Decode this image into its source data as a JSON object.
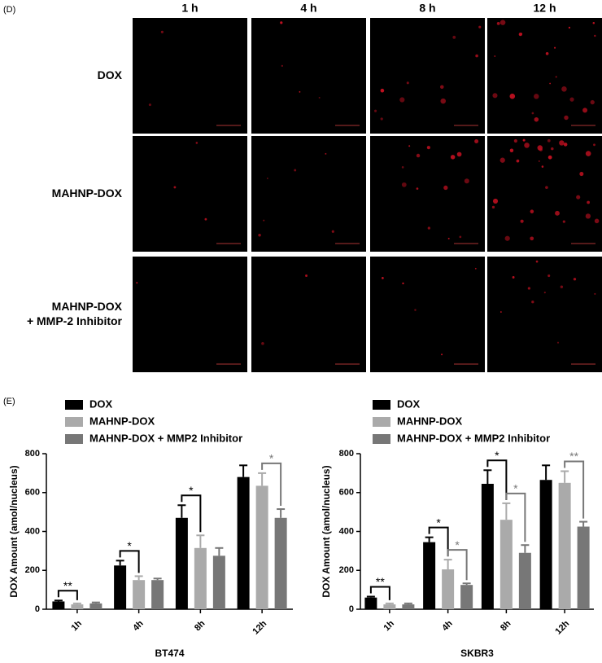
{
  "panel_d": {
    "label": "(D)",
    "columns": [
      "1 h",
      "4 h",
      "8 h",
      "12 h"
    ],
    "rows": [
      "DOX",
      "MAHNP-DOX",
      "MAHNP-DOX\n+ MMP-2 Inhibitor"
    ]
  },
  "panel_e_label": "(E)",
  "chart_data": [
    {
      "type": "bar",
      "x_label": "BT474",
      "y_label": "DOX Amount (amol/nucleus)",
      "categories": [
        "1h",
        "4h",
        "8h",
        "12h"
      ],
      "series": [
        {
          "name": "DOX",
          "color": "#000000",
          "values": [
            40,
            225,
            470,
            680
          ],
          "errors": [
            5,
            25,
            65,
            60
          ]
        },
        {
          "name": "MAHNP-DOX",
          "color": "#aaaaaa",
          "values": [
            25,
            150,
            315,
            635
          ],
          "errors": [
            5,
            20,
            65,
            65
          ]
        },
        {
          "name": "MAHNP-DOX + MMP2 Inhibitor",
          "color": "#777777",
          "values": [
            30,
            150,
            275,
            470
          ],
          "errors": [
            5,
            8,
            40,
            45
          ]
        }
      ],
      "ylim": [
        0,
        800
      ],
      "yticks": [
        0,
        200,
        400,
        600,
        800
      ],
      "brackets": [
        {
          "text": "**",
          "category": 0,
          "series": [
            0,
            1
          ],
          "color": "#000000"
        },
        {
          "text": "*",
          "category": 1,
          "series": [
            0,
            1
          ],
          "color": "#000000"
        },
        {
          "text": "*",
          "category": 2,
          "series": [
            0,
            1
          ],
          "color": "#000000"
        },
        {
          "text": "*",
          "category": 3,
          "series": [
            1,
            2
          ],
          "color": "#777777"
        }
      ]
    },
    {
      "type": "bar",
      "x_label": "SKBR3",
      "y_label": "DOX Amount (amol/nucleus)",
      "categories": [
        "1h",
        "4h",
        "8h",
        "12h"
      ],
      "series": [
        {
          "name": "DOX",
          "color": "#000000",
          "values": [
            60,
            345,
            645,
            665
          ],
          "errors": [
            5,
            25,
            70,
            75
          ]
        },
        {
          "name": "MAHNP-DOX",
          "color": "#aaaaaa",
          "values": [
            25,
            205,
            460,
            650
          ],
          "errors": [
            5,
            50,
            85,
            60
          ]
        },
        {
          "name": "MAHNP-DOX + MMP2 Inhibitor",
          "color": "#777777",
          "values": [
            25,
            125,
            290,
            425
          ],
          "errors": [
            5,
            8,
            40,
            25
          ]
        }
      ],
      "ylim": [
        0,
        800
      ],
      "yticks": [
        0,
        200,
        400,
        600,
        800
      ],
      "brackets": [
        {
          "text": "**",
          "category": 0,
          "series": [
            0,
            1
          ],
          "color": "#000000"
        },
        {
          "text": "*",
          "category": 1,
          "series": [
            0,
            1
          ],
          "color": "#000000"
        },
        {
          "text": "*",
          "category": 1,
          "series": [
            1,
            2
          ],
          "color": "#777777"
        },
        {
          "text": "*",
          "category": 2,
          "series": [
            0,
            1
          ],
          "color": "#000000"
        },
        {
          "text": "*",
          "category": 2,
          "series": [
            1,
            2
          ],
          "color": "#777777"
        },
        {
          "text": "**",
          "category": 3,
          "series": [
            1,
            2
          ],
          "color": "#777777"
        }
      ]
    }
  ]
}
